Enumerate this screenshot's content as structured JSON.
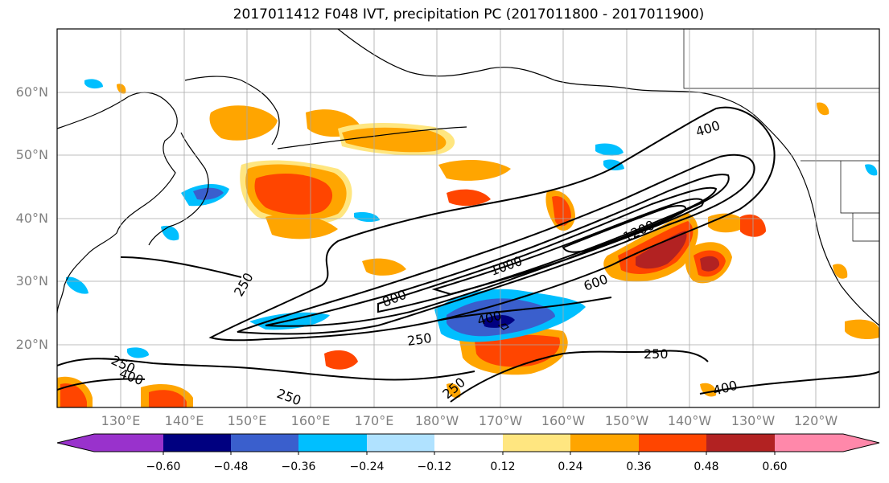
{
  "title": "2017011412 F048 IVT, precipitation PC (2017011800 - 2017011900)",
  "lat_labels": [
    "60°N",
    "50°N",
    "40°N",
    "30°N",
    "20°N"
  ],
  "lon_labels": [
    "130°E",
    "140°E",
    "150°E",
    "160°E",
    "170°E",
    "180°W",
    "170°W",
    "160°W",
    "150°W",
    "140°W",
    "130°W",
    "120°W"
  ],
  "contour_labels": {
    "c400_ne": "400",
    "c1200": "1200",
    "c1000": "1000",
    "c800": "800",
    "c600": "600",
    "c400_mid": "400",
    "c250_w": "250",
    "c250_mid": "250",
    "c250_s": "250",
    "c250_e": "250",
    "c250_sw": "250",
    "c400_sw": "400",
    "c250_sse": "250",
    "c400_se": "400"
  },
  "colorbar": {
    "ticks": [
      "−0.60",
      "−0.48",
      "−0.36",
      "−0.24",
      "−0.12",
      "0.12",
      "0.24",
      "0.36",
      "0.48",
      "0.60"
    ],
    "colors": [
      "#9932cc",
      "#000080",
      "#3a5fcd",
      "#00bfff",
      "#b0e2ff",
      "#ffffff",
      "#ffe680",
      "#ffa500",
      "#ff4500",
      "#b22222",
      "#ff88aa"
    ]
  }
}
